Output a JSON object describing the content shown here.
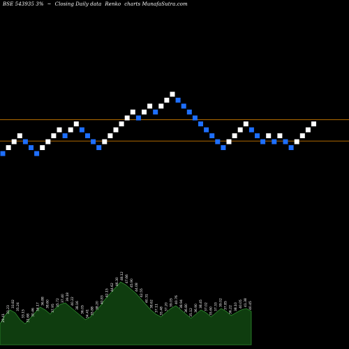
{
  "header": {
    "symbol": "BSE 543935 3%",
    "separator": "~",
    "desc": "Closing Daily data",
    "chart_kind": "Renko",
    "site": "charts MunafaSutra.com"
  },
  "colors": {
    "background": "#000000",
    "up_brick": "#ffffff",
    "down_brick": "#1e6fff",
    "level_line": "#b36b00",
    "volume_fill": "#0f3d0f",
    "volume_outline": "#2e8b2e",
    "volume_label": "#ffffff"
  },
  "chart_data": {
    "type": "renko",
    "grid": false,
    "levels": [
      47.2,
      43.6
    ],
    "bricks": [
      {
        "price": 41.5,
        "dir": "down"
      },
      {
        "price": 42.5,
        "dir": "up"
      },
      {
        "price": 43.5,
        "dir": "up"
      },
      {
        "price": 44.5,
        "dir": "up"
      },
      {
        "price": 43.5,
        "dir": "down"
      },
      {
        "price": 42.5,
        "dir": "down"
      },
      {
        "price": 41.5,
        "dir": "down"
      },
      {
        "price": 42.5,
        "dir": "up"
      },
      {
        "price": 43.5,
        "dir": "up"
      },
      {
        "price": 44.5,
        "dir": "up"
      },
      {
        "price": 45.5,
        "dir": "up"
      },
      {
        "price": 44.5,
        "dir": "down"
      },
      {
        "price": 45.5,
        "dir": "up"
      },
      {
        "price": 46.5,
        "dir": "up"
      },
      {
        "price": 45.5,
        "dir": "down"
      },
      {
        "price": 44.5,
        "dir": "down"
      },
      {
        "price": 43.5,
        "dir": "down"
      },
      {
        "price": 42.5,
        "dir": "down"
      },
      {
        "price": 43.5,
        "dir": "up"
      },
      {
        "price": 44.5,
        "dir": "up"
      },
      {
        "price": 45.5,
        "dir": "up"
      },
      {
        "price": 46.5,
        "dir": "up"
      },
      {
        "price": 47.5,
        "dir": "up"
      },
      {
        "price": 48.5,
        "dir": "up"
      },
      {
        "price": 47.5,
        "dir": "down"
      },
      {
        "price": 48.5,
        "dir": "up"
      },
      {
        "price": 49.5,
        "dir": "up"
      },
      {
        "price": 48.5,
        "dir": "down"
      },
      {
        "price": 49.5,
        "dir": "up"
      },
      {
        "price": 50.5,
        "dir": "up"
      },
      {
        "price": 51.5,
        "dir": "up"
      },
      {
        "price": 50.5,
        "dir": "down"
      },
      {
        "price": 49.5,
        "dir": "down"
      },
      {
        "price": 48.5,
        "dir": "down"
      },
      {
        "price": 47.5,
        "dir": "down"
      },
      {
        "price": 46.5,
        "dir": "down"
      },
      {
        "price": 45.5,
        "dir": "down"
      },
      {
        "price": 44.5,
        "dir": "down"
      },
      {
        "price": 43.5,
        "dir": "down"
      },
      {
        "price": 42.5,
        "dir": "down"
      },
      {
        "price": 43.5,
        "dir": "up"
      },
      {
        "price": 44.5,
        "dir": "up"
      },
      {
        "price": 45.5,
        "dir": "up"
      },
      {
        "price": 46.5,
        "dir": "up"
      },
      {
        "price": 45.5,
        "dir": "down"
      },
      {
        "price": 44.5,
        "dir": "down"
      },
      {
        "price": 43.5,
        "dir": "down"
      },
      {
        "price": 44.5,
        "dir": "up"
      },
      {
        "price": 43.5,
        "dir": "down"
      },
      {
        "price": 44.5,
        "dir": "up"
      },
      {
        "price": 43.5,
        "dir": "down"
      },
      {
        "price": 42.5,
        "dir": "down"
      },
      {
        "price": 43.5,
        "dir": "up"
      },
      {
        "price": 44.5,
        "dir": "up"
      },
      {
        "price": 45.5,
        "dir": "up"
      },
      {
        "price": 46.5,
        "dir": "up"
      }
    ],
    "volume_profile": [
      30,
      42,
      50,
      46,
      36,
      30,
      38,
      46,
      54,
      50,
      44,
      52,
      58,
      60,
      54,
      48,
      42,
      36,
      40,
      48,
      56,
      66,
      74,
      82,
      90,
      86,
      80,
      74,
      66,
      58,
      50,
      44,
      40,
      46,
      52,
      56,
      50,
      44,
      38,
      44,
      50,
      46,
      40,
      46,
      52,
      48,
      42,
      46,
      50,
      52,
      48
    ],
    "volume_labels": [
      "29.41",
      "31.23",
      "33.82",
      "35.24",
      "33.15",
      "31.68",
      "30.46",
      "34.17",
      "36.88",
      "38.60",
      "37.95",
      "35.72",
      "37.40",
      "39.18",
      "40.22",
      "38.16",
      "36.05",
      "34.41",
      "35.88",
      "38.20",
      "40.83",
      "42.15",
      "44.62",
      "46.30",
      "48.12",
      "47.66",
      "45.90",
      "44.08",
      "42.55",
      "40.31",
      "38.62",
      "37.11",
      "35.48",
      "37.20",
      "39.05",
      "40.76",
      "38.94",
      "36.80",
      "35.12",
      "36.90",
      "38.45",
      "37.02",
      "35.60",
      "37.33",
      "39.02",
      "37.85",
      "36.22",
      "38.10",
      "40.05",
      "41.38",
      "40.45"
    ]
  }
}
